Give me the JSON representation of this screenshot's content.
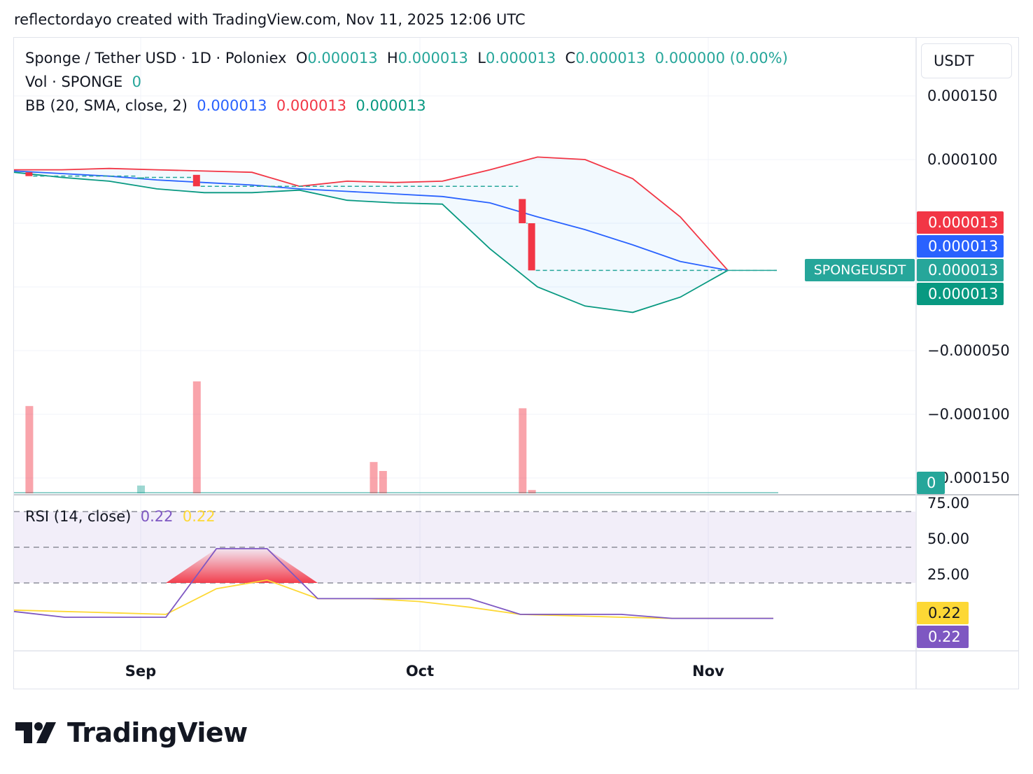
{
  "header": {
    "text": "reflectordayo created with TradingView.com, Nov 11, 2025 12:06 UTC"
  },
  "legend": {
    "symbol": "Sponge / Tether USD · 1D · Poloniex",
    "o_label": "O",
    "o_value": "0.000013",
    "h_label": "H",
    "h_value": "0.000013",
    "l_label": "L",
    "l_value": "0.000013",
    "c_label": "C",
    "c_value": "0.000013",
    "change": "0.000000 (0.00%)",
    "vol_label": "Vol · SPONGE",
    "vol_value": "0",
    "bb_label": "BB (20, SMA, close, 2)",
    "bb_basis": "0.000013",
    "bb_upper": "0.000013",
    "bb_lower": "0.000013",
    "rsi_label": "RSI (14, close)",
    "rsi_value": "0.22",
    "rsi_ma": "0.22"
  },
  "currency": "USDT",
  "symbol_tag": "SPONGEUSDT",
  "price_tags": {
    "upper": "0.000013",
    "basis": "0.000013",
    "last": "0.000013",
    "lower": "0.000013",
    "volume": "0",
    "rsi_ma": "0.22",
    "rsi": "0.22"
  },
  "colors": {
    "up": "#26a69a",
    "down": "#f23645",
    "basis": "#2962ff",
    "lower_band": "#089981",
    "rsi": "#7e57c2",
    "rsi_ma": "#fdd835",
    "band_fill": "#2196f3"
  },
  "logo": {
    "text": "TradingView",
    "icon": "tradingview-logo-icon"
  },
  "chart_data": [
    {
      "type": "line",
      "title": "Sponge / Tether USD · 1D · Poloniex",
      "y_axis_labels": [
        "0.000150",
        "0.000100",
        "−0.000050",
        "−0.000100",
        "−0.000150"
      ],
      "x_axis_labels": [
        "Sep",
        "Oct",
        "Nov"
      ],
      "ylim": [
        -0.000165,
        0.00017
      ],
      "candles": [
        {
          "x": "Aug 20",
          "o": 9e-05,
          "c": 8.7e-05
        },
        {
          "x": "Sep 1",
          "o": 8.5e-05,
          "c": 8.6e-05
        },
        {
          "x": "Sep 7",
          "o": 8.8e-05,
          "c": 7.9e-05
        },
        {
          "x": "Oct 12",
          "o": 6.9e-05,
          "c": 5e-05
        },
        {
          "x": "Oct 13",
          "o": 5e-05,
          "c": 1.3e-05
        }
      ],
      "bb_upper": [
        9.2e-05,
        9.2e-05,
        9.3e-05,
        9.2e-05,
        9.1e-05,
        9e-05,
        7.9e-05,
        8.3e-05,
        8.2e-05,
        8.3e-05,
        9.2e-05,
        0.000102,
        0.0001,
        8.5e-05,
        5.5e-05,
        1.3e-05
      ],
      "bb_basis": [
        9.1e-05,
        8.9e-05,
        8.7e-05,
        8.4e-05,
        8.2e-05,
        8e-05,
        7.7e-05,
        7.5e-05,
        7.3e-05,
        7.1e-05,
        6.6e-05,
        5.5e-05,
        4.5e-05,
        3.3e-05,
        2e-05,
        1.3e-05
      ],
      "bb_lower": [
        9e-05,
        8.6e-05,
        8.3e-05,
        7.7e-05,
        7.4e-05,
        7.4e-05,
        7.6e-05,
        6.8e-05,
        6.6e-05,
        6.5e-05,
        3e-05,
        0.0,
        -1.5e-05,
        -2e-05,
        -8e-06,
        1.3e-05
      ]
    },
    {
      "type": "bar",
      "title": "Vol · SPONGE",
      "categories": [
        "Aug 16",
        "Aug 20",
        "Sep 1",
        "Sep 7",
        "Sep 26",
        "Sep 27",
        "Oct 12",
        "Oct 13"
      ],
      "values": [
        0.06,
        0.78,
        0.07,
        1.0,
        0.28,
        0.2,
        0.76,
        0.03
      ]
    },
    {
      "type": "line",
      "title": "RSI (14, close)",
      "y_axis_labels": [
        "75.00",
        "50.00",
        "25.00"
      ],
      "ylim": [
        0,
        80
      ],
      "rsi": [
        5,
        1,
        1,
        1,
        49,
        49,
        14,
        14,
        14,
        14,
        3,
        3,
        3,
        0.22,
        0.22,
        0.22
      ],
      "rsi_ma": [
        6,
        5,
        4,
        3,
        21,
        27,
        14,
        14,
        12,
        8,
        3,
        2,
        1,
        0.22,
        0.22,
        0.22
      ]
    }
  ]
}
